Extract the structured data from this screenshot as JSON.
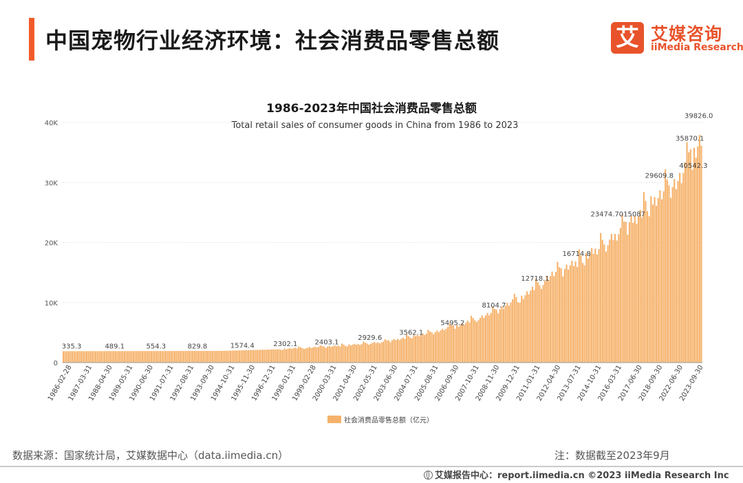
{
  "header": {
    "title": "中国宠物行业经济环境：社会消费品零售总额",
    "brand_mark": "艾",
    "brand_cn": "艾媒咨询",
    "brand_en": "iiMedia Research"
  },
  "footer": {
    "source": "数据来源：国家统计局，艾媒数据中心（data.iimedia.cn）",
    "note": "注：数据截至2023年9月",
    "report": "艾媒报告中心：report.iimedia.cn  ©2023  iiMedia Research  Inc"
  },
  "colors": {
    "accent": "#f25a2a",
    "brand": "#e8532b",
    "bar": "#f6b26b"
  },
  "chart_data": {
    "type": "bar",
    "title": "1986-2023年中国社会消费品零售总额",
    "subtitle": "Total retail sales of consumer goods in China from 1986 to 2023",
    "legend": "社会消费品零售总额（亿元）",
    "legend_position": "bottom",
    "ylim": [
      0,
      40000
    ],
    "yticks": [
      "0",
      "10K",
      "20K",
      "30K",
      "40K"
    ],
    "grid": true,
    "x_labels": [
      "1986-02-28",
      "1987-03-31",
      "1988-04-30",
      "1989-05-31",
      "1990-06-30",
      "1991-07-31",
      "1992-08-31",
      "1993-09-30",
      "1994-10-31",
      "1995-11-30",
      "1996-12-31",
      "1998-01-31",
      "1999-02-28",
      "2000-03-31",
      "2001-04-30",
      "2002-05-31",
      "2003-06-30",
      "2004-07-31",
      "2005-08-31",
      "2006-09-30",
      "2007-10-31",
      "2008-11-30",
      "2009-12-31",
      "2011-01-31",
      "2012-04-30",
      "2013-07-31",
      "2014-10-31",
      "2016-03-31",
      "2017-06-30",
      "2018-09-30",
      "2022-06-30",
      "2023-09-30"
    ],
    "bar_count": 356,
    "anchors": [
      [
        0,
        1900
      ],
      [
        88,
        1950
      ],
      [
        118,
        2200
      ],
      [
        150,
        2700
      ],
      [
        178,
        3400
      ],
      [
        205,
        5000
      ],
      [
        222,
        6400
      ],
      [
        238,
        8200
      ],
      [
        256,
        11000
      ],
      [
        272,
        14500
      ],
      [
        288,
        17000
      ],
      [
        305,
        20500
      ],
      [
        320,
        24500
      ],
      [
        334,
        28500
      ],
      [
        344,
        31000
      ],
      [
        355,
        37500
      ]
    ],
    "annotations": [
      {
        "label": "335.3",
        "x": 5,
        "value": 1900
      },
      {
        "label": "489.1",
        "x": 29,
        "value": 1900
      },
      {
        "label": "554.3",
        "x": 52,
        "value": 1900
      },
      {
        "label": "829.8",
        "x": 75,
        "value": 1900
      },
      {
        "label": "1574.4",
        "x": 100,
        "value": 2000
      },
      {
        "label": "2302.1",
        "x": 124,
        "value": 2300
      },
      {
        "label": "2403.1",
        "x": 147,
        "value": 2600
      },
      {
        "label": "2929.6",
        "x": 171,
        "value": 3300
      },
      {
        "label": "3562.1",
        "x": 194,
        "value": 4200
      },
      {
        "label": "5495.2",
        "x": 217,
        "value": 5800
      },
      {
        "label": "8104.7",
        "x": 240,
        "value": 8700
      },
      {
        "label": "12718.1",
        "x": 263,
        "value": 13200
      },
      {
        "label": "16714.8",
        "x": 286,
        "value": 17300
      },
      {
        "label": "23474.7015087",
        "x": 309,
        "value": 23900
      },
      {
        "label": "29609.8",
        "x": 332,
        "value": 30300
      },
      {
        "label": "35870.1",
        "x": 349,
        "value": 36500
      },
      {
        "label": "40542.3",
        "x": 352,
        "value": 32000
      },
      {
        "label": "39826.0",
        "x": 355,
        "value": 40300
      }
    ]
  }
}
